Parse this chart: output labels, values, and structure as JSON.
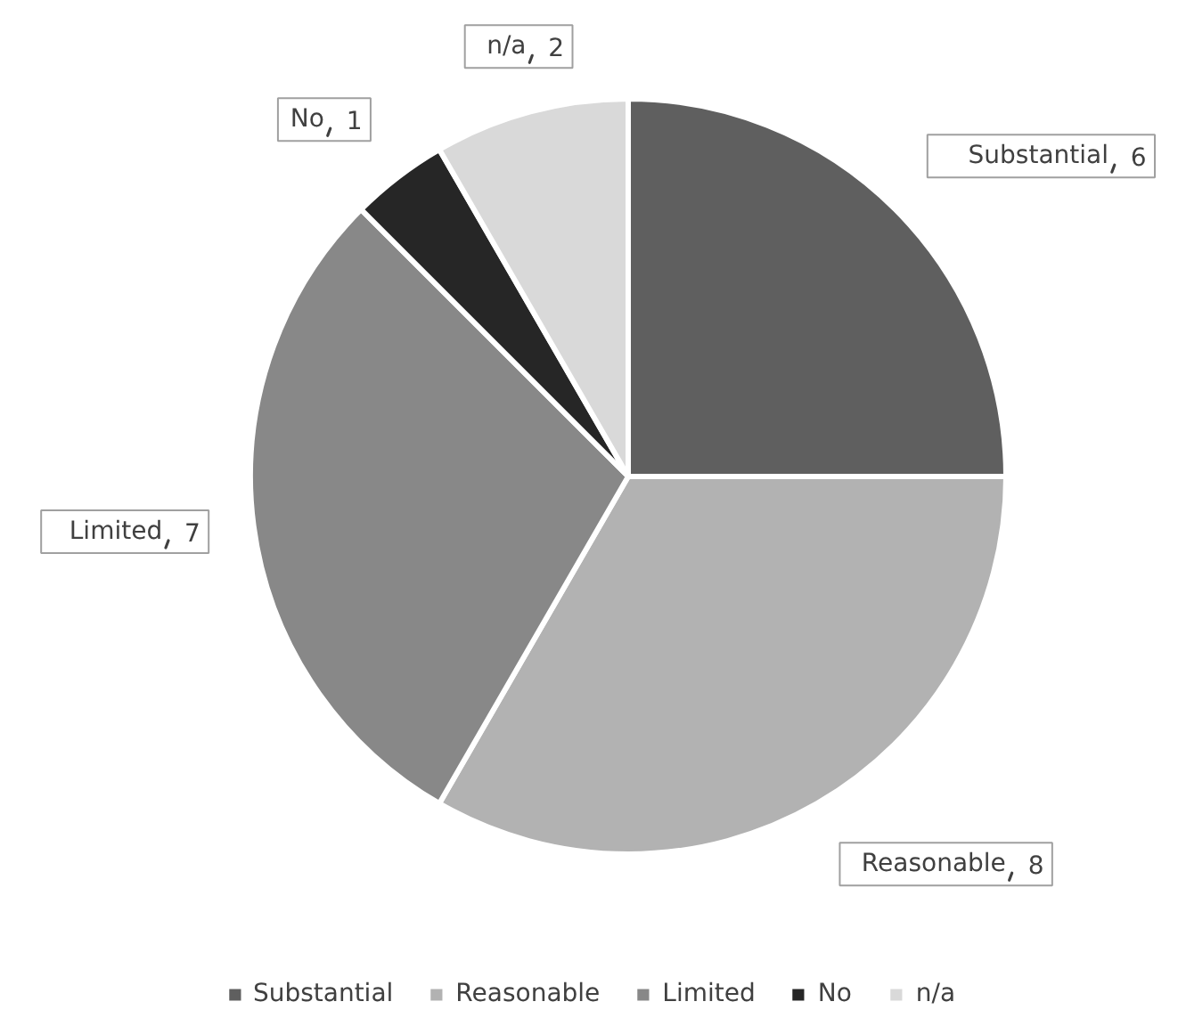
{
  "chart_data": {
    "type": "pie",
    "categories": [
      "Substantial",
      "Reasonable",
      "Limited",
      "No",
      "n/a"
    ],
    "values": [
      6,
      8,
      7,
      1,
      2
    ],
    "colors": [
      "#5f5f5f",
      "#b2b2b2",
      "#888888",
      "#262626",
      "#d9d9d9"
    ],
    "data_labels": true,
    "legend": "bottom"
  }
}
